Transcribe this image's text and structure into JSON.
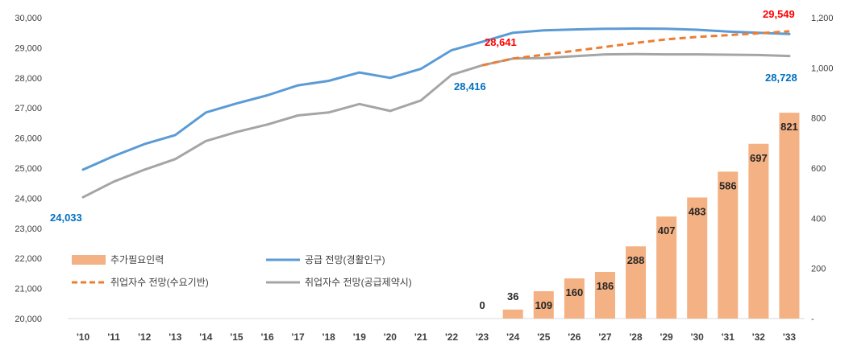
{
  "chart_data": {
    "type": "combo-bar-line",
    "categories": [
      "'10",
      "'11",
      "'12",
      "'13",
      "'14",
      "'15",
      "'16",
      "'17",
      "'18",
      "'19",
      "'20",
      "'21",
      "'22",
      "'23",
      "'24",
      "'25",
      "'26",
      "'27",
      "'28",
      "'29",
      "'30",
      "'31",
      "'32",
      "'33"
    ],
    "y_left": {
      "min": 20000,
      "max": 30000,
      "step": 1000,
      "tick_labels": [
        "20,000",
        "21,000",
        "22,000",
        "23,000",
        "24,000",
        "25,000",
        "26,000",
        "27,000",
        "28,000",
        "29,000",
        "30,000"
      ]
    },
    "y_right": {
      "min": 0,
      "max": 1200,
      "step": 200,
      "tick_labels": [
        "-",
        "200",
        "400",
        "600",
        "800",
        "1,000",
        "1,200"
      ]
    },
    "bars": {
      "name": "추가필요인력",
      "color": "#F4B183",
      "axis": "right",
      "values": [
        null,
        null,
        null,
        null,
        null,
        null,
        null,
        null,
        null,
        null,
        null,
        null,
        null,
        0,
        36,
        109,
        160,
        186,
        288,
        407,
        483,
        586,
        697,
        821
      ],
      "labels": [
        null,
        null,
        null,
        null,
        null,
        null,
        null,
        null,
        null,
        null,
        null,
        null,
        null,
        "0",
        "36",
        "109",
        "160",
        "186",
        "288",
        "407",
        "483",
        "586",
        "697",
        "821"
      ]
    },
    "series": [
      {
        "name": "공급 전망(경활인구)",
        "color": "#5B9BD5",
        "style": "solid",
        "axis": "left",
        "values": [
          24950,
          25400,
          25800,
          26100,
          26850,
          27150,
          27420,
          27750,
          27900,
          28180,
          28000,
          28300,
          28920,
          29200,
          29500,
          29580,
          29610,
          29630,
          29640,
          29630,
          29600,
          29540,
          29500,
          29460
        ]
      },
      {
        "name": "취업자수 전망(수요기반)",
        "color": "#ED7D31",
        "style": "dashed",
        "axis": "left",
        "values": [
          null,
          null,
          null,
          null,
          null,
          null,
          null,
          null,
          null,
          null,
          null,
          null,
          null,
          28416,
          28641,
          28770,
          28900,
          29030,
          29160,
          29280,
          29360,
          29420,
          29480,
          29549
        ]
      },
      {
        "name": "취업자수 전망(공급제약시)",
        "color": "#A5A5A5",
        "style": "solid",
        "axis": "left",
        "values": [
          24033,
          24550,
          24950,
          25300,
          25900,
          26200,
          26450,
          26750,
          26850,
          27130,
          26900,
          27250,
          28100,
          28416,
          28641,
          28660,
          28720,
          28780,
          28790,
          28780,
          28780,
          28770,
          28760,
          28728
        ]
      }
    ],
    "annotations": [
      {
        "text": "24,033",
        "color": "#0070C0",
        "near": "'10"
      },
      {
        "text": "28,416",
        "color": "#0070C0",
        "near": "'23"
      },
      {
        "text": "28,641",
        "color": "#FF0000",
        "near": "'24"
      },
      {
        "text": "29,549",
        "color": "#FF0000",
        "near": "'33"
      },
      {
        "text": "28,728",
        "color": "#0070C0",
        "near": "'33"
      }
    ],
    "legend": [
      {
        "name": "추가필요인력",
        "marker": "bar",
        "color": "#F4B183"
      },
      {
        "name": "공급 전망(경활인구)",
        "marker": "line-solid",
        "color": "#5B9BD5"
      },
      {
        "name": "취업자수 전망(수요기반)",
        "marker": "line-dashed",
        "color": "#ED7D31"
      },
      {
        "name": "취업자수 전망(공급제약시)",
        "marker": "line-solid",
        "color": "#A5A5A5"
      }
    ],
    "legend_placement": "bottom-left"
  }
}
